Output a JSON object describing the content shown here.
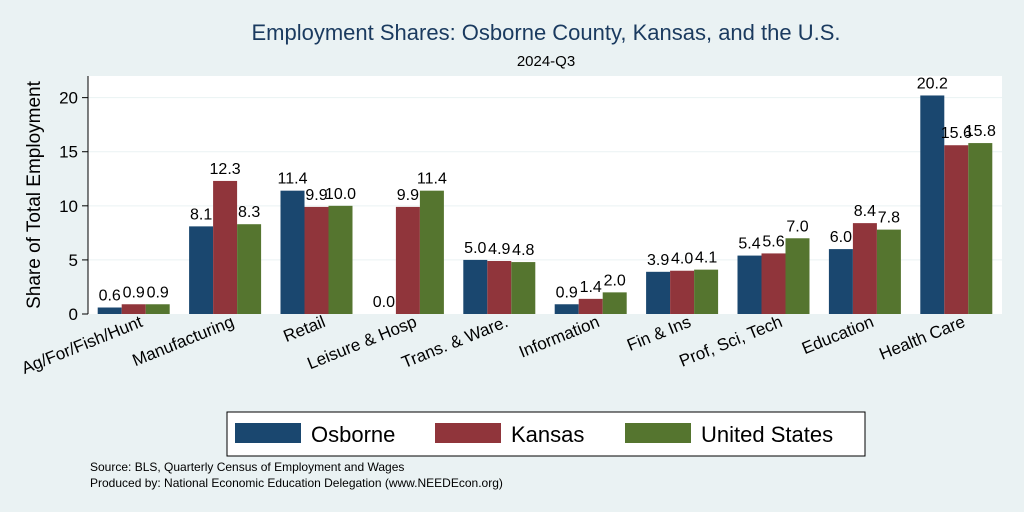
{
  "chart_data": {
    "type": "bar",
    "title": "Employment Shares: Osborne County, Kansas, and the U.S.",
    "subtitle": "2024-Q3",
    "ylabel": "Share of Total Employment",
    "xlabel": "",
    "ylim": [
      0,
      22
    ],
    "yticks": [
      0,
      5,
      10,
      15,
      20
    ],
    "categories": [
      "Ag/For/Fish/Hunt",
      "Manufacturing",
      "Retail",
      "Leisure & Hosp",
      "Trans. & Ware.",
      "Information",
      "Fin & Ins",
      "Prof, Sci, Tech",
      "Education",
      "Health Care"
    ],
    "series": [
      {
        "name": "Osborne",
        "color": "#1a476f",
        "values": [
          0.6,
          8.1,
          11.4,
          0.0,
          5.0,
          0.9,
          3.9,
          5.4,
          6.0,
          20.2
        ]
      },
      {
        "name": "Kansas",
        "color": "#90353b",
        "values": [
          0.9,
          12.3,
          9.9,
          9.9,
          4.9,
          1.4,
          4.0,
          5.6,
          8.4,
          15.6
        ]
      },
      {
        "name": "United States",
        "color": "#55752f",
        "values": [
          0.9,
          8.3,
          10.0,
          11.4,
          4.8,
          2.0,
          4.1,
          7.0,
          7.8,
          15.8
        ]
      }
    ],
    "legend_position": "bottom",
    "notes": [
      "Source: BLS, Quarterly Census of Employment and Wages",
      "Produced by: National Economic Education Delegation (www.NEEDEcon.org)"
    ]
  }
}
